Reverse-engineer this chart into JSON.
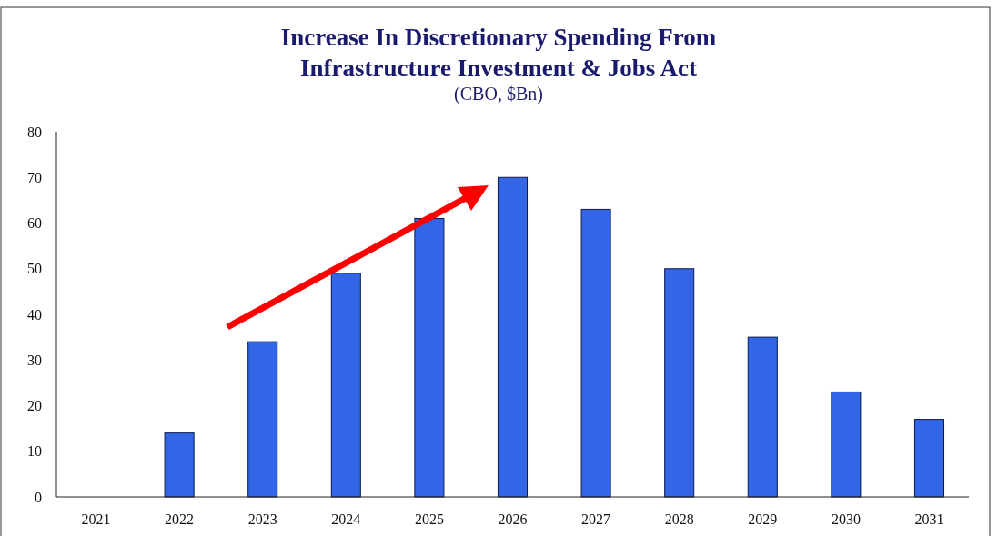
{
  "chart_data": {
    "type": "bar",
    "title": "Increase In Discretionary Spending From Infrastructure Investment & Jobs Act",
    "subtitle": "(CBO, $Bn)",
    "categories": [
      "2021",
      "2022",
      "2023",
      "2024",
      "2025",
      "2026",
      "2027",
      "2028",
      "2029",
      "2030",
      "2031"
    ],
    "values": [
      0,
      14,
      34,
      49,
      61,
      70,
      63,
      50,
      35,
      23,
      17
    ],
    "color": "#3366e6",
    "ylim": [
      0,
      80
    ],
    "yticks": [
      0,
      10,
      20,
      30,
      40,
      50,
      60,
      70,
      80
    ],
    "grid": false
  }
}
